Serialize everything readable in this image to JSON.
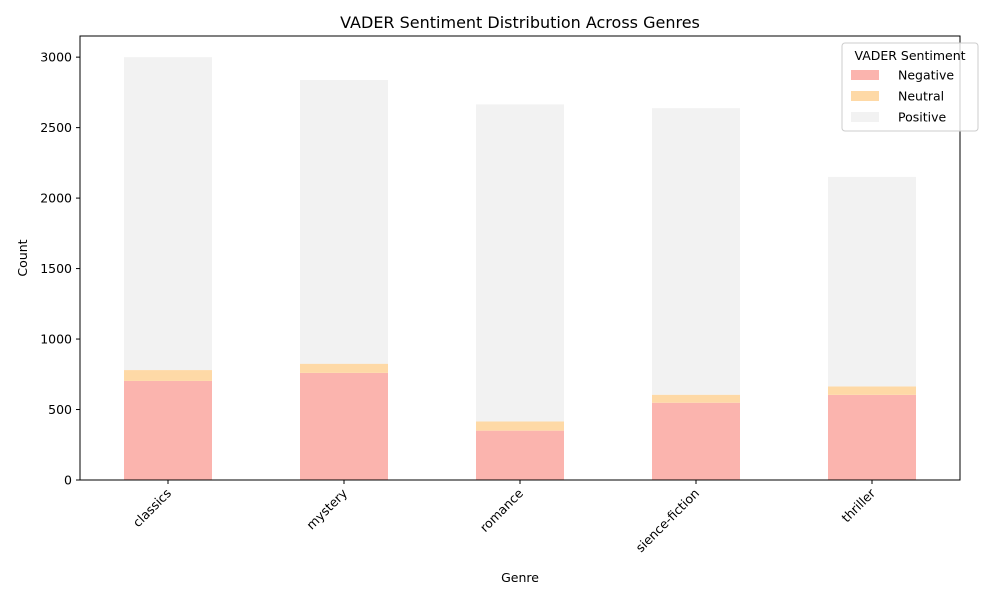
{
  "chart_data": {
    "type": "bar",
    "stacked": true,
    "title": "VADER Sentiment Distribution Across Genres",
    "xlabel": "Genre",
    "ylabel": "Count",
    "categories": [
      "classics",
      "mystery",
      "romance",
      "sience-fiction",
      "thriller"
    ],
    "series": [
      {
        "name": "Negative",
        "color": "#fbb4ae",
        "values": [
          703,
          760,
          350,
          548,
          604
        ]
      },
      {
        "name": "Neutral",
        "color": "#fed9a6",
        "values": [
          77,
          65,
          65,
          57,
          60
        ]
      },
      {
        "name": "Positive",
        "color": "#f2f2f2",
        "values": [
          2220,
          2013,
          2250,
          2033,
          1486
        ]
      }
    ],
    "ylim": [
      0,
      3150
    ],
    "yticks": [
      0,
      500,
      1000,
      1500,
      2000,
      2500,
      3000
    ],
    "ytick_labels": [
      "0",
      "500",
      "1000",
      "1500",
      "2000",
      "2500",
      "3000"
    ],
    "legend": {
      "title": "VADER Sentiment",
      "position": "top-right"
    },
    "grid": false
  }
}
